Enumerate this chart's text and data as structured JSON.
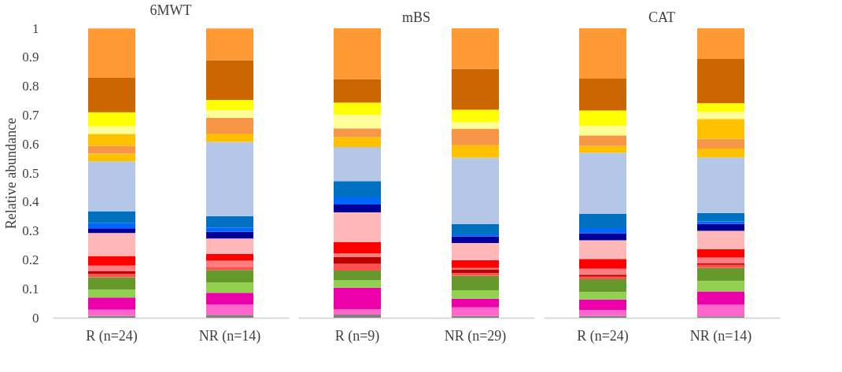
{
  "chart_data": [
    {
      "type": "bar",
      "title": "6MWT",
      "ylabel": "Relative abundance",
      "categories": [
        "R (n=24)",
        "NR (n=14)"
      ],
      "stacked": true,
      "ylim": [
        0,
        1
      ],
      "yticks": [
        0,
        0.1,
        0.2,
        0.3,
        0.4,
        0.5,
        0.6,
        0.7,
        0.8,
        0.9,
        1
      ],
      "grid": false,
      "series": [
        {
          "color": "#808080",
          "values": [
            0.007,
            0.01
          ]
        },
        {
          "color": "#ff66cc",
          "values": [
            0.021,
            0.036
          ]
        },
        {
          "color": "#ec00aa",
          "values": [
            0.042,
            0.04
          ]
        },
        {
          "color": "#92d050",
          "values": [
            0.027,
            0.036
          ]
        },
        {
          "color": "#66992b",
          "values": [
            0.043,
            0.043
          ]
        },
        {
          "color": "#ff5050",
          "values": [
            0.011,
            0.009
          ]
        },
        {
          "color": "#c00000",
          "values": [
            0.009,
            0
          ]
        },
        {
          "color": "#ff7c80",
          "values": [
            0.02,
            0.023
          ]
        },
        {
          "color": "#ff0000",
          "values": [
            0.033,
            0.023
          ]
        },
        {
          "color": "#ffb7b7",
          "values": [
            0.08,
            0.054
          ]
        },
        {
          "color": "#000099",
          "values": [
            0.016,
            0.023
          ]
        },
        {
          "color": "#0066ff",
          "values": [
            0.018,
            0.015
          ]
        },
        {
          "color": "#0070c0",
          "values": [
            0.041,
            0.039
          ]
        },
        {
          "color": "#b4c7e7",
          "values": [
            0.172,
            0.256
          ]
        },
        {
          "color": "#ffc000",
          "values": [
            0.027,
            0.029
          ]
        },
        {
          "color": "#f79646",
          "values": [
            0.027,
            0.054
          ]
        },
        {
          "color": "#ffc000",
          "values": [
            0.041,
            0
          ]
        },
        {
          "color": "#ffff99",
          "values": [
            0.027,
            0.027
          ]
        },
        {
          "color": "#ffff00",
          "values": [
            0.048,
            0.036
          ]
        },
        {
          "color": "#cc6600",
          "values": [
            0.119,
            0.137
          ]
        },
        {
          "color": "#ff9933",
          "values": [
            0.17,
            0.109
          ]
        }
      ]
    },
    {
      "type": "bar",
      "title": "mBS",
      "categories": [
        "R (n=9)",
        "NR (n=29)"
      ],
      "stacked": true,
      "ylim": [
        0,
        1
      ],
      "tick_labels": "x",
      "grid": false,
      "series": [
        {
          "color": "#808080",
          "values": [
            0.011,
            0.006
          ]
        },
        {
          "color": "#ff66cc",
          "values": [
            0.019,
            0.03
          ]
        },
        {
          "color": "#ec00aa",
          "values": [
            0.074,
            0.03
          ]
        },
        {
          "color": "#92d050",
          "values": [
            0.025,
            0.029
          ]
        },
        {
          "color": "#66992b",
          "values": [
            0.034,
            0.05
          ]
        },
        {
          "color": "#ff5050",
          "values": [
            0.023,
            0.009
          ]
        },
        {
          "color": "#c00000",
          "values": [
            0.023,
            0.012
          ]
        },
        {
          "color": "#ff7c80",
          "values": [
            0.014,
            0.006
          ]
        },
        {
          "color": "#ff0000",
          "values": [
            0.038,
            0.027
          ]
        },
        {
          "color": "#ffb7b7",
          "values": [
            0.103,
            0.059
          ]
        },
        {
          "color": "#000099",
          "values": [
            0.027,
            0.023
          ]
        },
        {
          "color": "#0066ff",
          "values": [
            0.025,
            0.007
          ]
        },
        {
          "color": "#0070c0",
          "values": [
            0.056,
            0.036
          ]
        },
        {
          "color": "#b4c7e7",
          "values": [
            0.118,
            0.229
          ]
        },
        {
          "color": "#ffc000",
          "values": [
            0.034,
            0.043
          ]
        },
        {
          "color": "#f79646",
          "values": [
            0.03,
            0.057
          ]
        },
        {
          "color": "#ffc000",
          "values": [
            0,
            0
          ]
        },
        {
          "color": "#ffff99",
          "values": [
            0.048,
            0.023
          ]
        },
        {
          "color": "#ffff00",
          "values": [
            0.041,
            0.043
          ]
        },
        {
          "color": "#cc6600",
          "values": [
            0.082,
            0.141
          ]
        },
        {
          "color": "#ff9933",
          "values": [
            0.175,
            0.14
          ]
        }
      ]
    },
    {
      "type": "bar",
      "title": "CAT",
      "categories": [
        "R (n=24)",
        "NR (n=14)"
      ],
      "stacked": true,
      "ylim": [
        0,
        1
      ],
      "tick_labels": "x",
      "grid": false,
      "series": [
        {
          "color": "#808080",
          "values": [
            0.006,
            0.005
          ]
        },
        {
          "color": "#ff66cc",
          "values": [
            0.021,
            0.04
          ]
        },
        {
          "color": "#ec00aa",
          "values": [
            0.036,
            0.046
          ]
        },
        {
          "color": "#92d050",
          "values": [
            0.027,
            0.036
          ]
        },
        {
          "color": "#66992b",
          "values": [
            0.043,
            0.045
          ]
        },
        {
          "color": "#ff5050",
          "values": [
            0.009,
            0.011
          ]
        },
        {
          "color": "#c00000",
          "values": [
            0.007,
            0.006
          ]
        },
        {
          "color": "#ff7c80",
          "values": [
            0.02,
            0.019
          ]
        },
        {
          "color": "#ff0000",
          "values": [
            0.034,
            0.029
          ]
        },
        {
          "color": "#ffb7b7",
          "values": [
            0.065,
            0.063
          ]
        },
        {
          "color": "#000099",
          "values": [
            0.024,
            0.024
          ]
        },
        {
          "color": "#0066ff",
          "values": [
            0.018,
            0.009
          ]
        },
        {
          "color": "#0070c0",
          "values": [
            0.049,
            0.029
          ]
        },
        {
          "color": "#b4c7e7",
          "values": [
            0.211,
            0.192
          ]
        },
        {
          "color": "#ffc000",
          "values": [
            0.024,
            0.03
          ]
        },
        {
          "color": "#f79646",
          "values": [
            0.036,
            0.034
          ]
        },
        {
          "color": "#ffc000",
          "values": [
            0,
            0.069
          ]
        },
        {
          "color": "#ffff99",
          "values": [
            0.034,
            0.024
          ]
        },
        {
          "color": "#ffff00",
          "values": [
            0.052,
            0.03
          ]
        },
        {
          "color": "#cc6600",
          "values": [
            0.11,
            0.153
          ]
        },
        {
          "color": "#ff9933",
          "values": [
            0.174,
            0.106
          ]
        }
      ]
    }
  ]
}
